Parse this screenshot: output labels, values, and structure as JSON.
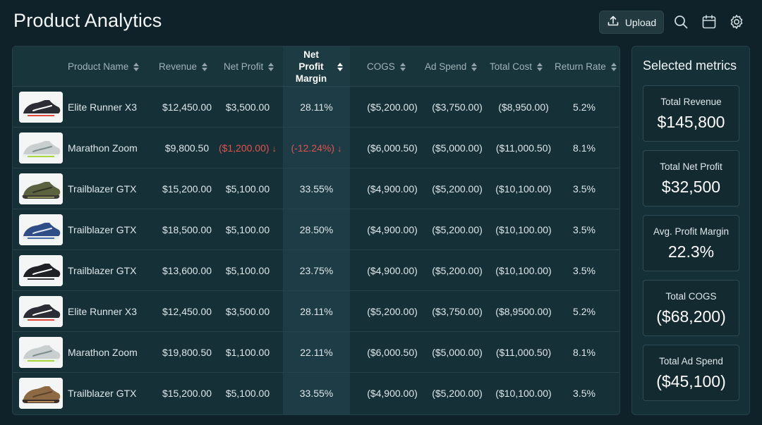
{
  "header": {
    "title": "Product Analytics",
    "upload_label": "Upload",
    "icons": [
      "upload-icon",
      "search-icon",
      "calendar-icon",
      "gear-icon"
    ]
  },
  "table": {
    "columns": [
      "Product Name",
      "Revenue",
      "Net Profit",
      "Net Profit Margin",
      "COGS",
      "Ad Spend",
      "Total Cost",
      "Return Rate"
    ],
    "sorted_column": "Net Profit Margin",
    "rows": [
      {
        "name": "Elite Runner X3",
        "revenue": "$12,450.00",
        "net_profit": "$3,500.00",
        "margin": "28.11%",
        "cogs": "($5,200.00)",
        "ad_spend": "($3,750.00)",
        "total_cost": "($8,950.00)",
        "return_rate": "5.2%",
        "negative": false,
        "shoe": "black-red"
      },
      {
        "name": "Marathon Zoom",
        "revenue": "$9,800.50",
        "net_profit": "($1,200.00)",
        "margin": "(-12.24%)",
        "cogs": "($6,000.50)",
        "ad_spend": "($5,000.00)",
        "total_cost": "($11,000.50)",
        "return_rate": "8.1%",
        "negative": true,
        "shoe": "grey-lime"
      },
      {
        "name": "Trailblazer GTX",
        "revenue": "$15,200.00",
        "net_profit": "$5,100.00",
        "margin": "33.55%",
        "cogs": "($4,900.00)",
        "ad_spend": "($5,200.00)",
        "total_cost": "($10,100.00)",
        "return_rate": "3.5%",
        "negative": false,
        "shoe": "olive"
      },
      {
        "name": "Trailblazer GTX",
        "revenue": "$18,500.00",
        "net_profit": "$5,100.00",
        "margin": "28.50%",
        "cogs": "($4,900.00)",
        "ad_spend": "($5,200.00)",
        "total_cost": "($10,100.00)",
        "return_rate": "3.5%",
        "negative": false,
        "shoe": "blue"
      },
      {
        "name": "Trailblazer GTX",
        "revenue": "$13,600.00",
        "net_profit": "$5,100.00",
        "margin": "23.75%",
        "cogs": "($4,900.00)",
        "ad_spend": "($5,200.00)",
        "total_cost": "($10,100.00)",
        "return_rate": "3.5%",
        "negative": false,
        "shoe": "black-white"
      },
      {
        "name": "Elite Runner X3",
        "revenue": "$12,450.00",
        "net_profit": "$3,500.00",
        "margin": "28.11%",
        "cogs": "($5,200.00)",
        "ad_spend": "($3,750.00)",
        "total_cost": "($8,9500.00)",
        "return_rate": "5.2%",
        "negative": false,
        "shoe": "black-red"
      },
      {
        "name": "Marathon Zoom",
        "revenue": "$19,800.50",
        "net_profit": "$1,100.00",
        "margin": "22.11%",
        "cogs": "($6,000.50)",
        "ad_spend": "($5,000.00)",
        "total_cost": "($11,000.50)",
        "return_rate": "8.1%",
        "negative": false,
        "shoe": "grey-lime"
      },
      {
        "name": "Trailblazer GTX",
        "revenue": "$15,200.00",
        "net_profit": "$5,100.00",
        "margin": "33.55%",
        "cogs": "($4,900.00)",
        "ad_spend": "($5,200.00)",
        "total_cost": "($10,100.00)",
        "return_rate": "3.5%",
        "negative": false,
        "shoe": "tan"
      }
    ]
  },
  "metrics": {
    "title": "Selected metrics",
    "cards": [
      {
        "label": "Total Revenue",
        "value": "$145,800"
      },
      {
        "label": "Total Net Profit",
        "value": "$32,500"
      },
      {
        "label": "Avg. Profit Margin",
        "value": "22.3%"
      },
      {
        "label": "Total COGS",
        "value": "($68,200)"
      },
      {
        "label": "Total Ad Spend",
        "value": "($45,100)"
      }
    ]
  },
  "colors": {
    "background": "#0f2229",
    "panel": "#163037",
    "negative": "#e0544d",
    "highlight_column": "#1d3c45"
  }
}
